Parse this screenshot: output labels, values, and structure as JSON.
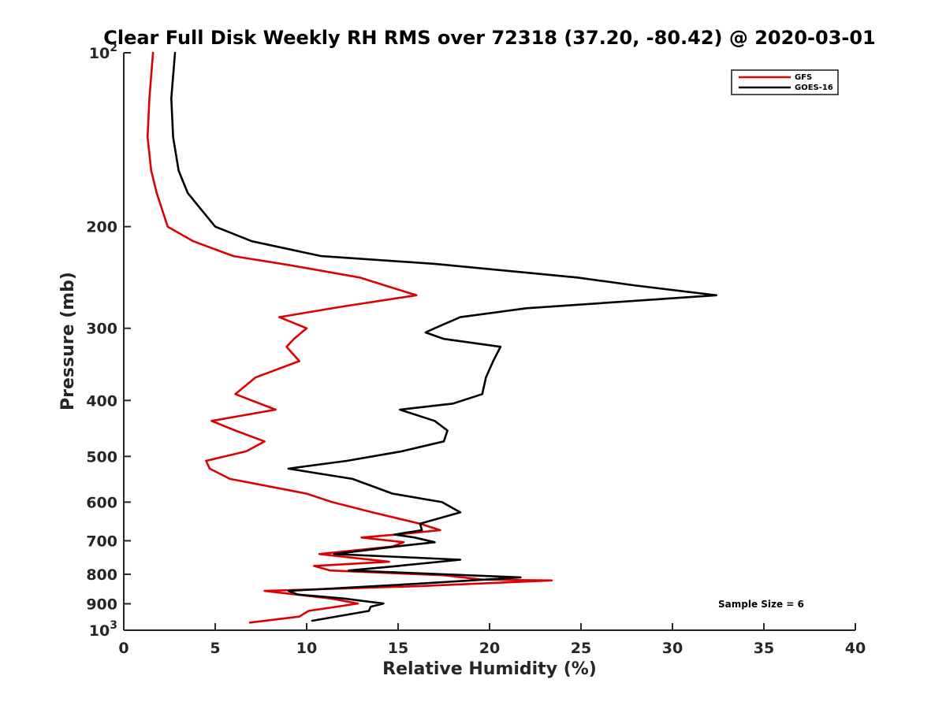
{
  "chart_data": {
    "type": "line",
    "title": "Clear Full Disk Weekly RH RMS over 72318 (37.20, -80.42) @ 2020-03-01",
    "xlabel": "Relative Humidity (%)",
    "ylabel": "Pressure (mb)",
    "xlim": [
      0,
      40
    ],
    "ylim": [
      100,
      1000
    ],
    "y_scale": "log",
    "y_reversed": true,
    "grid": false,
    "legend_position": "top-right",
    "x_ticks": [
      {
        "value": 0,
        "label": "0"
      },
      {
        "value": 5,
        "label": "5"
      },
      {
        "value": 10,
        "label": "10"
      },
      {
        "value": 15,
        "label": "15"
      },
      {
        "value": 20,
        "label": "20"
      },
      {
        "value": 25,
        "label": "25"
      },
      {
        "value": 30,
        "label": "30"
      },
      {
        "value": 35,
        "label": "35"
      },
      {
        "value": 40,
        "label": "40"
      }
    ],
    "y_ticks": [
      {
        "value": 100,
        "base": "10",
        "exp": "2"
      },
      {
        "value": 200,
        "label": "200"
      },
      {
        "value": 300,
        "label": "300"
      },
      {
        "value": 400,
        "label": "400"
      },
      {
        "value": 500,
        "label": "500"
      },
      {
        "value": 600,
        "label": "600"
      },
      {
        "value": 700,
        "label": "700"
      },
      {
        "value": 800,
        "label": "800"
      },
      {
        "value": 900,
        "label": "900"
      },
      {
        "value": 1000,
        "base": "10",
        "exp": "3"
      }
    ],
    "annotation": "Sample Size = 6",
    "series": [
      {
        "name": "GFS",
        "color": "#dd0000",
        "points": [
          [
            1.6,
            100
          ],
          [
            1.4,
            120
          ],
          [
            1.3,
            140
          ],
          [
            1.5,
            160
          ],
          [
            1.8,
            175
          ],
          [
            2.4,
            200
          ],
          [
            3.8,
            212
          ],
          [
            6.0,
            225
          ],
          [
            9.0,
            233
          ],
          [
            12.9,
            245
          ],
          [
            14.3,
            253
          ],
          [
            16.0,
            263
          ],
          [
            12.0,
            275
          ],
          [
            8.5,
            287
          ],
          [
            10.0,
            300
          ],
          [
            9.3,
            313
          ],
          [
            8.9,
            323
          ],
          [
            9.6,
            342
          ],
          [
            7.2,
            365
          ],
          [
            6.1,
            390
          ],
          [
            8.3,
            415
          ],
          [
            4.8,
            434
          ],
          [
            6.1,
            451
          ],
          [
            7.7,
            471
          ],
          [
            6.7,
            490
          ],
          [
            4.5,
            509
          ],
          [
            4.7,
            525
          ],
          [
            5.8,
            547
          ],
          [
            10.0,
            580
          ],
          [
            11.4,
            600
          ],
          [
            13.6,
            625
          ],
          [
            16.2,
            654
          ],
          [
            17.3,
            671
          ],
          [
            14.9,
            683
          ],
          [
            13.0,
            691
          ],
          [
            15.3,
            704
          ],
          [
            14.7,
            716
          ],
          [
            10.7,
            738
          ],
          [
            14.5,
            761
          ],
          [
            10.4,
            774
          ],
          [
            11.3,
            788
          ],
          [
            17.5,
            803
          ],
          [
            19.6,
            817
          ],
          [
            23.4,
            820
          ],
          [
            16.1,
            839
          ],
          [
            7.7,
            855
          ],
          [
            11.3,
            881
          ],
          [
            12.8,
            899
          ],
          [
            10.1,
            926
          ],
          [
            9.6,
            947
          ],
          [
            6.9,
            970
          ]
        ]
      },
      {
        "name": "GOES-16",
        "color": "#000000",
        "points": [
          [
            2.8,
            100
          ],
          [
            2.6,
            120
          ],
          [
            2.7,
            140
          ],
          [
            3.0,
            160
          ],
          [
            3.5,
            175
          ],
          [
            5.0,
            200
          ],
          [
            7.0,
            212
          ],
          [
            10.8,
            225
          ],
          [
            17.0,
            232
          ],
          [
            24.8,
            245
          ],
          [
            28.0,
            253
          ],
          [
            32.4,
            263
          ],
          [
            22.0,
            277
          ],
          [
            18.4,
            287
          ],
          [
            17.0,
            300
          ],
          [
            16.5,
            305
          ],
          [
            17.5,
            313
          ],
          [
            20.6,
            323
          ],
          [
            20.2,
            342
          ],
          [
            19.8,
            365
          ],
          [
            19.6,
            390
          ],
          [
            18.0,
            405
          ],
          [
            15.1,
            415
          ],
          [
            17.0,
            434
          ],
          [
            17.7,
            451
          ],
          [
            17.5,
            471
          ],
          [
            15.2,
            490
          ],
          [
            12.2,
            509
          ],
          [
            9.0,
            525
          ],
          [
            12.5,
            547
          ],
          [
            14.7,
            580
          ],
          [
            17.4,
            600
          ],
          [
            18.4,
            625
          ],
          [
            16.2,
            654
          ],
          [
            16.3,
            671
          ],
          [
            14.8,
            683
          ],
          [
            15.9,
            691
          ],
          [
            17.0,
            704
          ],
          [
            14.9,
            716
          ],
          [
            11.5,
            738
          ],
          [
            18.4,
            755
          ],
          [
            15.0,
            774
          ],
          [
            12.3,
            788
          ],
          [
            21.7,
            810
          ],
          [
            16.0,
            831
          ],
          [
            9.0,
            855
          ],
          [
            9.5,
            867
          ],
          [
            12.0,
            881
          ],
          [
            14.2,
            899
          ],
          [
            13.5,
            911
          ],
          [
            13.4,
            926
          ],
          [
            10.3,
            963
          ]
        ]
      }
    ]
  }
}
